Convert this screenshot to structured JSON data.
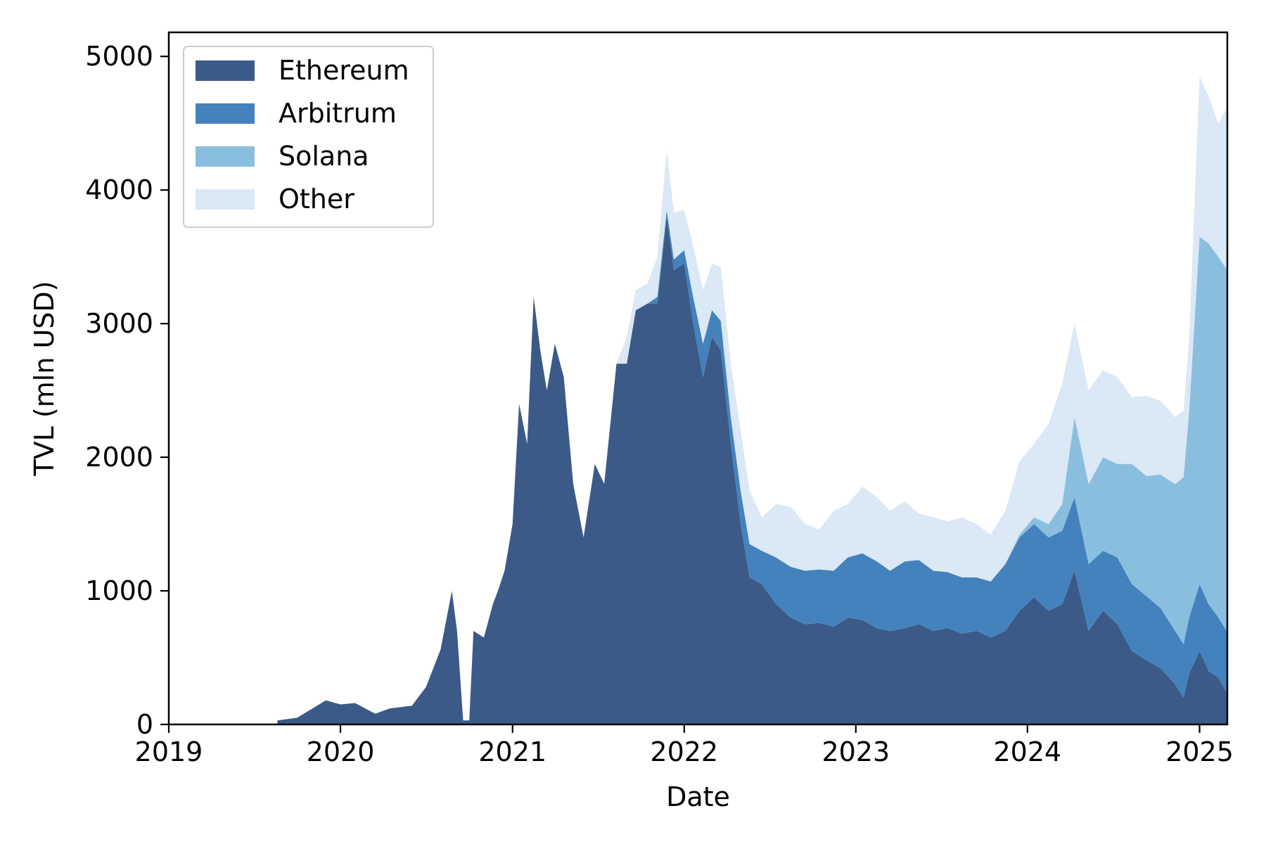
{
  "chart_data": {
    "type": "area",
    "stacked": true,
    "title": "",
    "xlabel": "Date",
    "ylabel": "TVL (mln USD)",
    "xlim": [
      "2019-01-01",
      "2025-03-01"
    ],
    "ylim": [
      0,
      5180
    ],
    "x_ticks": [
      "2019",
      "2020",
      "2021",
      "2022",
      "2023",
      "2024",
      "2025"
    ],
    "y_ticks": [
      0,
      1000,
      2000,
      3000,
      4000,
      5000
    ],
    "grid": false,
    "legend_position": "top-left",
    "colors": {
      "Ethereum": "#3b5a88",
      "Arbitrum": "#4482bd",
      "Solana": "#8abedf",
      "Other": "#dbe8f5"
    },
    "x": [
      "2019-08-20",
      "2019-10-01",
      "2019-12-01",
      "2020-01-01",
      "2020-02-01",
      "2020-03-15",
      "2020-04-15",
      "2020-06-01",
      "2020-07-01",
      "2020-08-01",
      "2020-08-25",
      "2020-09-05",
      "2020-09-18",
      "2020-09-25",
      "2020-10-01",
      "2020-10-10",
      "2020-11-01",
      "2020-11-20",
      "2020-12-01",
      "2020-12-15",
      "2021-01-01",
      "2021-01-15",
      "2021-02-01",
      "2021-02-15",
      "2021-03-01",
      "2021-03-15",
      "2021-04-01",
      "2021-04-20",
      "2021-05-10",
      "2021-06-01",
      "2021-06-25",
      "2021-07-15",
      "2021-08-10",
      "2021-09-01",
      "2021-09-20",
      "2021-10-15",
      "2021-11-05",
      "2021-11-25",
      "2021-12-10",
      "2022-01-01",
      "2022-01-20",
      "2022-02-10",
      "2022-03-01",
      "2022-03-20",
      "2022-04-10",
      "2022-05-01",
      "2022-05-20",
      "2022-06-15",
      "2022-07-15",
      "2022-08-15",
      "2022-09-15",
      "2022-10-15",
      "2022-11-15",
      "2022-12-15",
      "2023-01-15",
      "2023-02-15",
      "2023-03-15",
      "2023-04-15",
      "2023-05-15",
      "2023-06-15",
      "2023-07-15",
      "2023-08-15",
      "2023-09-15",
      "2023-10-15",
      "2023-11-15",
      "2023-12-15",
      "2024-01-15",
      "2024-02-15",
      "2024-03-15",
      "2024-04-10",
      "2024-05-10",
      "2024-06-10",
      "2024-07-10",
      "2024-08-10",
      "2024-09-10",
      "2024-10-10",
      "2024-11-10",
      "2024-11-28",
      "2024-12-10",
      "2025-01-01",
      "2025-01-20",
      "2025-02-10",
      "2025-03-01"
    ],
    "series": [
      {
        "name": "Ethereum",
        "values": [
          30,
          50,
          180,
          150,
          160,
          80,
          120,
          140,
          280,
          560,
          1000,
          700,
          30,
          30,
          30,
          700,
          650,
          900,
          1000,
          1150,
          1500,
          2400,
          2100,
          3200,
          2800,
          2500,
          2850,
          2600,
          1800,
          1400,
          1950,
          1800,
          2700,
          2700,
          3100,
          3150,
          3150,
          3800,
          3400,
          3450,
          3000,
          2600,
          2900,
          2800,
          2100,
          1500,
          1100,
          1050,
          900,
          800,
          750,
          760,
          730,
          800,
          780,
          720,
          700,
          720,
          750,
          700,
          720,
          680,
          700,
          650,
          700,
          850,
          950,
          850,
          900,
          1150,
          700,
          850,
          750,
          550,
          480,
          420,
          300,
          200,
          380,
          550,
          400,
          350,
          230
        ]
      },
      {
        "name": "Arbitrum",
        "values": [
          0,
          0,
          0,
          0,
          0,
          0,
          0,
          0,
          0,
          0,
          0,
          0,
          0,
          0,
          0,
          0,
          0,
          0,
          0,
          0,
          0,
          0,
          0,
          0,
          0,
          0,
          0,
          0,
          0,
          0,
          0,
          0,
          0,
          0,
          0,
          0,
          50,
          50,
          80,
          100,
          200,
          250,
          200,
          220,
          200,
          250,
          250,
          250,
          350,
          380,
          400,
          400,
          420,
          450,
          500,
          500,
          450,
          500,
          480,
          450,
          420,
          420,
          400,
          420,
          500,
          550,
          550,
          550,
          550,
          550,
          500,
          450,
          500,
          500,
          480,
          450,
          400,
          400,
          420,
          500,
          500,
          450,
          460
        ]
      },
      {
        "name": "Solana",
        "values": [
          0,
          0,
          0,
          0,
          0,
          0,
          0,
          0,
          0,
          0,
          0,
          0,
          0,
          0,
          0,
          0,
          0,
          0,
          0,
          0,
          0,
          0,
          0,
          0,
          0,
          0,
          0,
          0,
          0,
          0,
          0,
          0,
          0,
          0,
          0,
          0,
          0,
          0,
          0,
          0,
          0,
          0,
          0,
          0,
          0,
          0,
          0,
          0,
          0,
          0,
          0,
          0,
          0,
          0,
          0,
          0,
          0,
          0,
          0,
          0,
          0,
          0,
          0,
          0,
          0,
          20,
          50,
          100,
          200,
          600,
          600,
          700,
          700,
          900,
          900,
          1000,
          1100,
          1250,
          1550,
          2600,
          2700,
          2700,
          2710
        ]
      },
      {
        "name": "Other",
        "values": [
          0,
          0,
          0,
          0,
          0,
          0,
          0,
          0,
          0,
          0,
          0,
          0,
          0,
          0,
          0,
          0,
          0,
          0,
          0,
          0,
          0,
          0,
          0,
          0,
          0,
          0,
          0,
          0,
          0,
          0,
          0,
          0,
          0,
          200,
          150,
          150,
          300,
          450,
          350,
          300,
          380,
          400,
          350,
          400,
          400,
          450,
          400,
          250,
          400,
          450,
          350,
          300,
          450,
          400,
          500,
          480,
          450,
          450,
          350,
          400,
          380,
          450,
          400,
          350,
          400,
          550,
          550,
          750,
          900,
          700,
          700,
          650,
          650,
          500,
          600,
          550,
          500,
          500,
          550,
          1200,
          1100,
          1000,
          1220
        ]
      }
    ]
  }
}
